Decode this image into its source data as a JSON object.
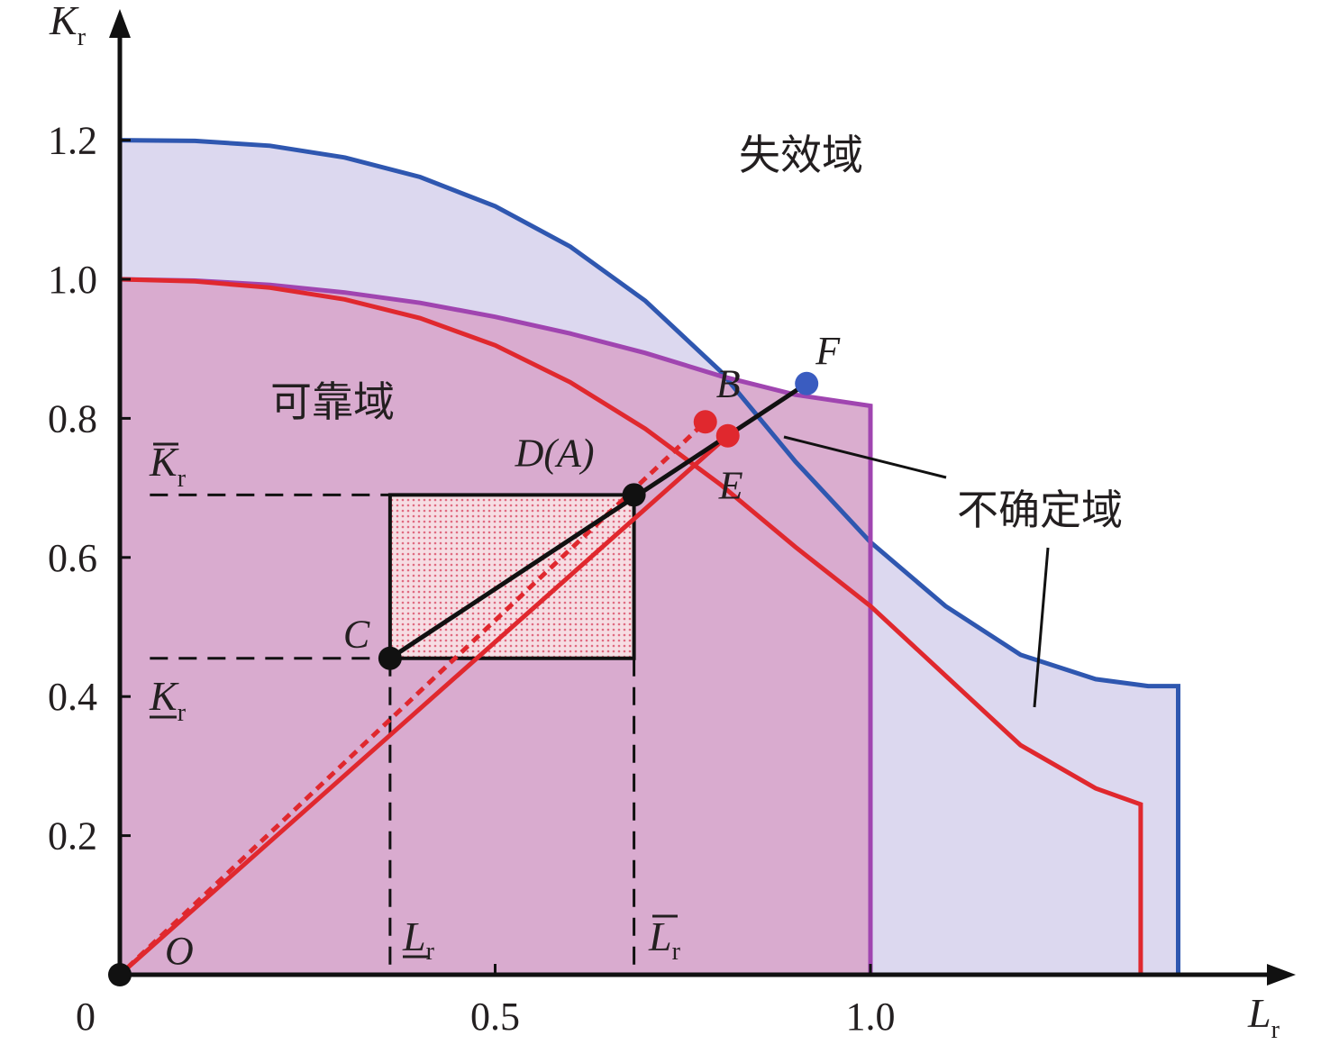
{
  "chart_data": {
    "type": "line",
    "xlabel": "L",
    "xlabel_sub": "r",
    "ylabel": "K",
    "ylabel_sub": "r",
    "xlim": [
      0,
      1.5
    ],
    "ylim": [
      0,
      1.3
    ],
    "x_ticks": [
      {
        "value": 0,
        "label": "0"
      },
      {
        "value": 0.5,
        "label": "0.5"
      },
      {
        "value": 1.0,
        "label": "1.0"
      }
    ],
    "y_ticks": [
      {
        "value": 0.2,
        "label": "0.2"
      },
      {
        "value": 0.4,
        "label": "0.4"
      },
      {
        "value": 0.6,
        "label": "0.6"
      },
      {
        "value": 0.8,
        "label": "0.8"
      },
      {
        "value": 1.0,
        "label": "1.0"
      },
      {
        "value": 1.2,
        "label": "1.2"
      }
    ],
    "colors": {
      "outer_curve": "#2f57b0",
      "outer_fill": "#dcd8ef",
      "middle_curve": "#a045b0",
      "inner_curve": "#e0282e",
      "inner_fill": "#d8a9cc",
      "box_fill": "#f2c9d3",
      "black": "#111111",
      "blue_point": "#3a5cc0",
      "red_point": "#e0282e"
    },
    "series": [
      {
        "role": "outer_failure_curve",
        "color": "#2f57b0",
        "points": [
          [
            0,
            1.2
          ],
          [
            0.1,
            1.199
          ],
          [
            0.2,
            1.192
          ],
          [
            0.3,
            1.175
          ],
          [
            0.4,
            1.147
          ],
          [
            0.5,
            1.105
          ],
          [
            0.6,
            1.047
          ],
          [
            0.7,
            0.969
          ],
          [
            0.8,
            0.868
          ],
          [
            0.9,
            0.738
          ],
          [
            1.0,
            0.622
          ],
          [
            1.1,
            0.53
          ],
          [
            1.2,
            0.46
          ],
          [
            1.3,
            0.425
          ],
          [
            1.37,
            0.415
          ],
          [
            1.41,
            0.415
          ],
          [
            1.41,
            0
          ]
        ]
      },
      {
        "role": "middle_curve",
        "color": "#a045b0",
        "points": [
          [
            0,
            1.0
          ],
          [
            0.1,
            0.998
          ],
          [
            0.2,
            0.992
          ],
          [
            0.3,
            0.981
          ],
          [
            0.4,
            0.966
          ],
          [
            0.5,
            0.946
          ],
          [
            0.6,
            0.922
          ],
          [
            0.7,
            0.894
          ],
          [
            0.8,
            0.861
          ],
          [
            0.9,
            0.834
          ],
          [
            1.0,
            0.818
          ],
          [
            1.0,
            0
          ]
        ]
      },
      {
        "role": "inner_reliable_curve",
        "color": "#e0282e",
        "points": [
          [
            0,
            1.0
          ],
          [
            0.1,
            0.997
          ],
          [
            0.2,
            0.988
          ],
          [
            0.3,
            0.971
          ],
          [
            0.4,
            0.944
          ],
          [
            0.5,
            0.905
          ],
          [
            0.6,
            0.852
          ],
          [
            0.7,
            0.785
          ],
          [
            0.8,
            0.705
          ],
          [
            0.9,
            0.615
          ],
          [
            1.0,
            0.53
          ],
          [
            1.1,
            0.43
          ],
          [
            1.2,
            0.33
          ],
          [
            1.3,
            0.268
          ],
          [
            1.36,
            0.245
          ],
          [
            1.36,
            0
          ]
        ]
      }
    ],
    "points": [
      {
        "label": "O",
        "x": 0.0,
        "y": 0.0,
        "color": "#111111"
      },
      {
        "label": "C",
        "x": 0.36,
        "y": 0.455,
        "color": "#111111"
      },
      {
        "label": "D(A)",
        "x": 0.685,
        "y": 0.69,
        "color": "#111111"
      },
      {
        "label": "B",
        "x": 0.78,
        "y": 0.795,
        "color": "#e0282e"
      },
      {
        "label": "E",
        "x": 0.81,
        "y": 0.775,
        "color": "#e0282e"
      },
      {
        "label": "F",
        "x": 0.915,
        "y": 0.85,
        "color": "#3a5cc0"
      }
    ],
    "box": {
      "x_min": 0.36,
      "x_max": 0.685,
      "y_min": 0.455,
      "y_max": 0.69
    },
    "bound_labels": {
      "K_upper": "K",
      "K_lower": "K",
      "L_lower": "L",
      "L_upper": "L",
      "sub": "r"
    },
    "regions": {
      "failure": "失效域",
      "reliable": "可靠域",
      "uncertain": "不确定域"
    }
  }
}
